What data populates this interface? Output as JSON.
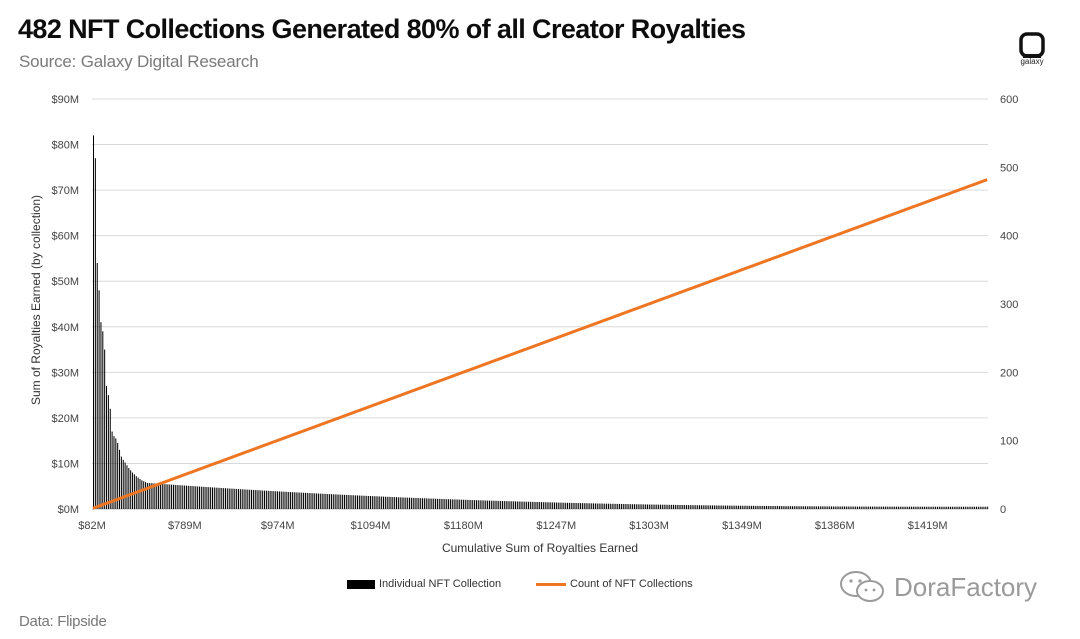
{
  "header": {
    "title": "482 NFT Collections Generated 80% of all Creator Royalties",
    "subtitle": "Source: Galaxy Digital Research",
    "logo_text": "galaxy"
  },
  "footer": {
    "data_source": "Data: Flipside"
  },
  "watermark": {
    "text": "DoraFactory"
  },
  "colors": {
    "bars": "#000000",
    "line": "#ee7623",
    "grid": "#d9d9d9"
  },
  "chart_data": {
    "type": "bar+line",
    "title": "482 NFT Collections Generated 80% of all Creator Royalties",
    "xlabel": "Cumulative Sum of Royalties Earned",
    "ylabel_left": "Sum of Royalties Earned (by collection)",
    "ylabel_right": "",
    "x_tick_labels": [
      "$82M",
      "$789M",
      "$974M",
      "$1094M",
      "$1180M",
      "$1247M",
      "$1303M",
      "$1349M",
      "$1386M",
      "$1419M"
    ],
    "y_left_ticks": [
      "$0M",
      "$10M",
      "$20M",
      "$30M",
      "$40M",
      "$50M",
      "$60M",
      "$70M",
      "$80M",
      "$90M"
    ],
    "y_left_range": [
      0,
      90
    ],
    "y_right_ticks": [
      "0",
      "100",
      "200",
      "300",
      "400",
      "500",
      "600"
    ],
    "y_right_range": [
      0,
      600
    ],
    "grid": true,
    "legend_position": "bottom",
    "series": [
      {
        "name": "Individual NFT Collection",
        "axis": "left",
        "type": "bar",
        "unit": "$M",
        "count": 482,
        "values_leading": [
          82,
          77,
          54,
          48,
          41,
          39,
          35,
          27,
          25,
          22,
          17,
          16,
          15.5,
          14.5,
          13,
          11.5,
          10.8,
          10.2,
          9.6,
          9,
          8.5,
          8,
          7.6,
          7.2,
          6.9,
          6.6,
          6.3,
          6.1,
          5.9,
          5.7
        ],
        "tail_decay": {
          "from": 5.7,
          "to": 0.5
        }
      },
      {
        "name": "Count of NFT Collections",
        "axis": "right",
        "type": "line",
        "values": "1 to 482, one per collection"
      }
    ]
  }
}
